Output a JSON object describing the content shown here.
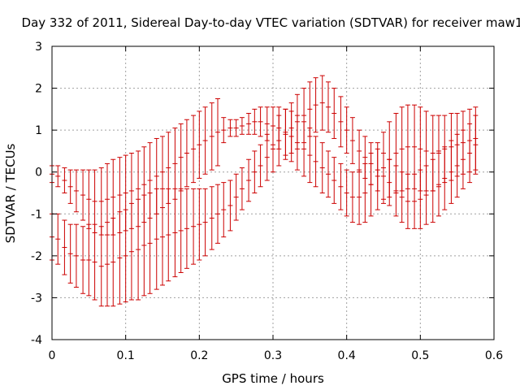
{
  "chart_data": {
    "type": "scatter",
    "title": "Day 332 of 2011, Sidereal Day-to-day VTEC variation (SDTVAR) for receiver maw1",
    "xlabel": "GPS time / hours",
    "ylabel": "SDTVAR / TECUs",
    "xlim": [
      0,
      0.6
    ],
    "ylim": [
      -4,
      3
    ],
    "xticks": [
      0,
      0.1,
      0.2,
      0.3,
      0.4,
      0.5,
      0.6
    ],
    "xtick_labels": [
      "0",
      "0.1",
      "0.2",
      "0.3",
      "0.4",
      "0.5",
      "0.6"
    ],
    "yticks": [
      -4,
      -3,
      -2,
      -1,
      0,
      1,
      2,
      3
    ],
    "ytick_labels": [
      "-4",
      "-3",
      "-2",
      "-1",
      "0",
      "1",
      "2",
      "3"
    ],
    "grid": true,
    "legend": "none",
    "color": "#cc0000",
    "series": [
      {
        "x": [
          0.0,
          0.008,
          0.017,
          0.025,
          0.033,
          0.042,
          0.05,
          0.058,
          0.067,
          0.075,
          0.083,
          0.092,
          0.1,
          0.108,
          0.117,
          0.125,
          0.133,
          0.142,
          0.15,
          0.158,
          0.167,
          0.175,
          0.183,
          0.192,
          0.2,
          0.208,
          0.217,
          0.225,
          0.233,
          0.242,
          0.25,
          0.258,
          0.267,
          0.275,
          0.283,
          0.292,
          0.3,
          0.308,
          0.317,
          0.325,
          0.333,
          0.342,
          0.35,
          0.358,
          0.367,
          0.375,
          0.383,
          0.392,
          0.4,
          0.408,
          0.417,
          0.425,
          0.433,
          0.442,
          0.45,
          0.458,
          0.467,
          0.475,
          0.483,
          0.492,
          0.5,
          0.508,
          0.517,
          0.525,
          0.533,
          0.542,
          0.55,
          0.558,
          0.567,
          0.575
        ],
        "y": [
          -1.55,
          -1.6,
          -1.8,
          -1.95,
          -2.0,
          -2.1,
          -2.1,
          -2.15,
          -2.25,
          -2.2,
          -2.15,
          -2.05,
          -2.0,
          -1.9,
          -1.85,
          -1.75,
          -1.7,
          -1.6,
          -1.55,
          -1.5,
          -1.45,
          -1.4,
          -1.35,
          -1.3,
          -1.25,
          -1.2,
          -1.1,
          -1.0,
          -0.9,
          -0.8,
          -0.6,
          -0.4,
          -0.2,
          0.0,
          0.15,
          0.35,
          0.55,
          0.75,
          0.9,
          1.05,
          1.2,
          1.35,
          1.5,
          1.6,
          1.65,
          1.55,
          1.4,
          1.2,
          1.0,
          0.75,
          0.5,
          0.35,
          0.2,
          0.05,
          -0.1,
          -0.25,
          -0.45,
          -0.6,
          -0.7,
          -0.7,
          -0.65,
          -0.55,
          -0.45,
          -0.3,
          -0.15,
          0.0,
          0.15,
          0.3,
          0.45,
          0.65
        ],
        "err": [
          0.55,
          0.6,
          0.65,
          0.7,
          0.75,
          0.8,
          0.85,
          0.9,
          0.95,
          1.0,
          1.05,
          1.1,
          1.1,
          1.15,
          1.2,
          1.2,
          1.2,
          1.2,
          1.15,
          1.1,
          1.05,
          1.0,
          0.95,
          0.9,
          0.85,
          0.8,
          0.75,
          0.7,
          0.65,
          0.6,
          0.55,
          0.5,
          0.5,
          0.5,
          0.5,
          0.55,
          0.55,
          0.6,
          0.6,
          0.6,
          0.65,
          0.65,
          0.65,
          0.65,
          0.65,
          0.6,
          0.6,
          0.6,
          0.55,
          0.55,
          0.5,
          0.5,
          0.5,
          0.5,
          0.55,
          0.55,
          0.6,
          0.6,
          0.65,
          0.65,
          0.7,
          0.7,
          0.75,
          0.75,
          0.75,
          0.75,
          0.75,
          0.7,
          0.7,
          0.7
        ]
      },
      {
        "x": [
          0.0,
          0.008,
          0.017,
          0.025,
          0.033,
          0.042,
          0.05,
          0.058,
          0.067,
          0.075,
          0.083,
          0.092,
          0.1,
          0.108,
          0.117,
          0.125,
          0.133,
          0.142,
          0.15,
          0.158,
          0.167,
          0.175,
          0.183,
          0.192,
          0.2,
          0.208,
          0.217,
          0.225,
          0.233,
          0.242,
          0.25,
          0.258,
          0.267,
          0.275,
          0.283,
          0.292,
          0.3,
          0.308,
          0.317,
          0.325,
          0.333,
          0.342,
          0.35,
          0.358,
          0.367,
          0.375,
          0.383,
          0.392,
          0.4,
          0.408,
          0.417,
          0.425,
          0.433,
          0.442,
          0.45,
          0.458,
          0.467,
          0.475,
          0.483,
          0.492,
          0.5,
          0.508,
          0.517,
          0.525,
          0.533,
          0.542,
          0.55,
          0.558,
          0.567,
          0.575
        ],
        "y": [
          -0.05,
          -0.1,
          -0.2,
          -0.35,
          -0.45,
          -0.55,
          -0.65,
          -0.7,
          -0.7,
          -0.65,
          -0.6,
          -0.55,
          -0.5,
          -0.45,
          -0.4,
          -0.3,
          -0.2,
          -0.1,
          0.0,
          0.1,
          0.2,
          0.35,
          0.45,
          0.55,
          0.65,
          0.75,
          0.85,
          0.95,
          1.0,
          1.05,
          1.05,
          1.1,
          1.15,
          1.2,
          1.2,
          1.15,
          1.1,
          1.05,
          0.95,
          0.85,
          0.7,
          0.55,
          0.4,
          0.25,
          0.1,
          -0.05,
          -0.2,
          -0.35,
          -0.5,
          -0.6,
          -0.6,
          -0.5,
          -0.3,
          -0.1,
          0.1,
          0.3,
          0.45,
          0.55,
          0.6,
          0.6,
          0.55,
          0.5,
          0.45,
          0.5,
          0.55,
          0.6,
          0.65,
          0.7,
          0.75,
          0.8
        ],
        "err": [
          0.2,
          0.25,
          0.3,
          0.4,
          0.5,
          0.6,
          0.7,
          0.75,
          0.8,
          0.85,
          0.9,
          0.9,
          0.9,
          0.9,
          0.9,
          0.9,
          0.9,
          0.9,
          0.85,
          0.85,
          0.85,
          0.8,
          0.8,
          0.8,
          0.8,
          0.8,
          0.8,
          0.8,
          0.3,
          0.2,
          0.2,
          0.2,
          0.25,
          0.3,
          0.35,
          0.4,
          0.45,
          0.5,
          0.55,
          0.6,
          0.65,
          0.65,
          0.65,
          0.6,
          0.6,
          0.55,
          0.55,
          0.55,
          0.55,
          0.6,
          0.65,
          0.7,
          0.75,
          0.8,
          0.85,
          0.9,
          0.95,
          1.0,
          1.0,
          1.0,
          1.0,
          0.95,
          0.9,
          0.85,
          0.8,
          0.8,
          0.75,
          0.75,
          0.75,
          0.75
        ]
      }
    ]
  }
}
